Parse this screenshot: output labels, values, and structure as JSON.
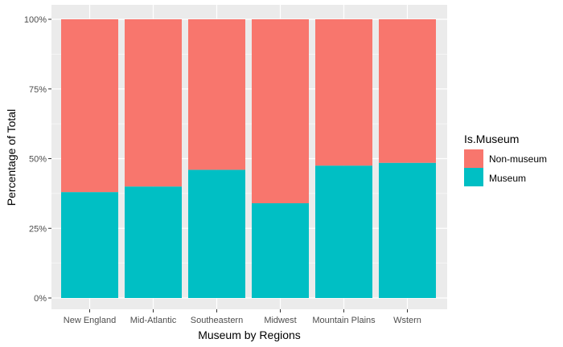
{
  "chart_data": {
    "type": "bar",
    "stacked": true,
    "categories": [
      "New England",
      "Mid-Atlantic",
      "Southeastern",
      "Midwest",
      "Mountain Plains",
      "Wstern"
    ],
    "series": [
      {
        "name": "Museum",
        "color": "#00BFC4",
        "values": [
          0.38,
          0.4,
          0.46,
          0.34,
          0.475,
          0.485
        ]
      },
      {
        "name": "Non-museum",
        "color": "#F8766D",
        "values": [
          0.62,
          0.6,
          0.54,
          0.66,
          0.525,
          0.515
        ]
      }
    ],
    "xlabel": "Museum by Regions",
    "ylabel": "Percentage of Total",
    "ylim": [
      0,
      1
    ],
    "yticks": [
      0,
      0.25,
      0.5,
      0.75,
      1
    ],
    "ytick_labels": [
      "0%",
      "25%",
      "50%",
      "75%",
      "100%"
    ],
    "legend": {
      "title": "Is.Museum",
      "position": "right",
      "entries": [
        {
          "label": "Non-museum",
          "color": "#F8766D"
        },
        {
          "label": "Museum",
          "color": "#00BFC4"
        }
      ]
    },
    "panel_background": "#EBEBEB",
    "grid": true
  }
}
